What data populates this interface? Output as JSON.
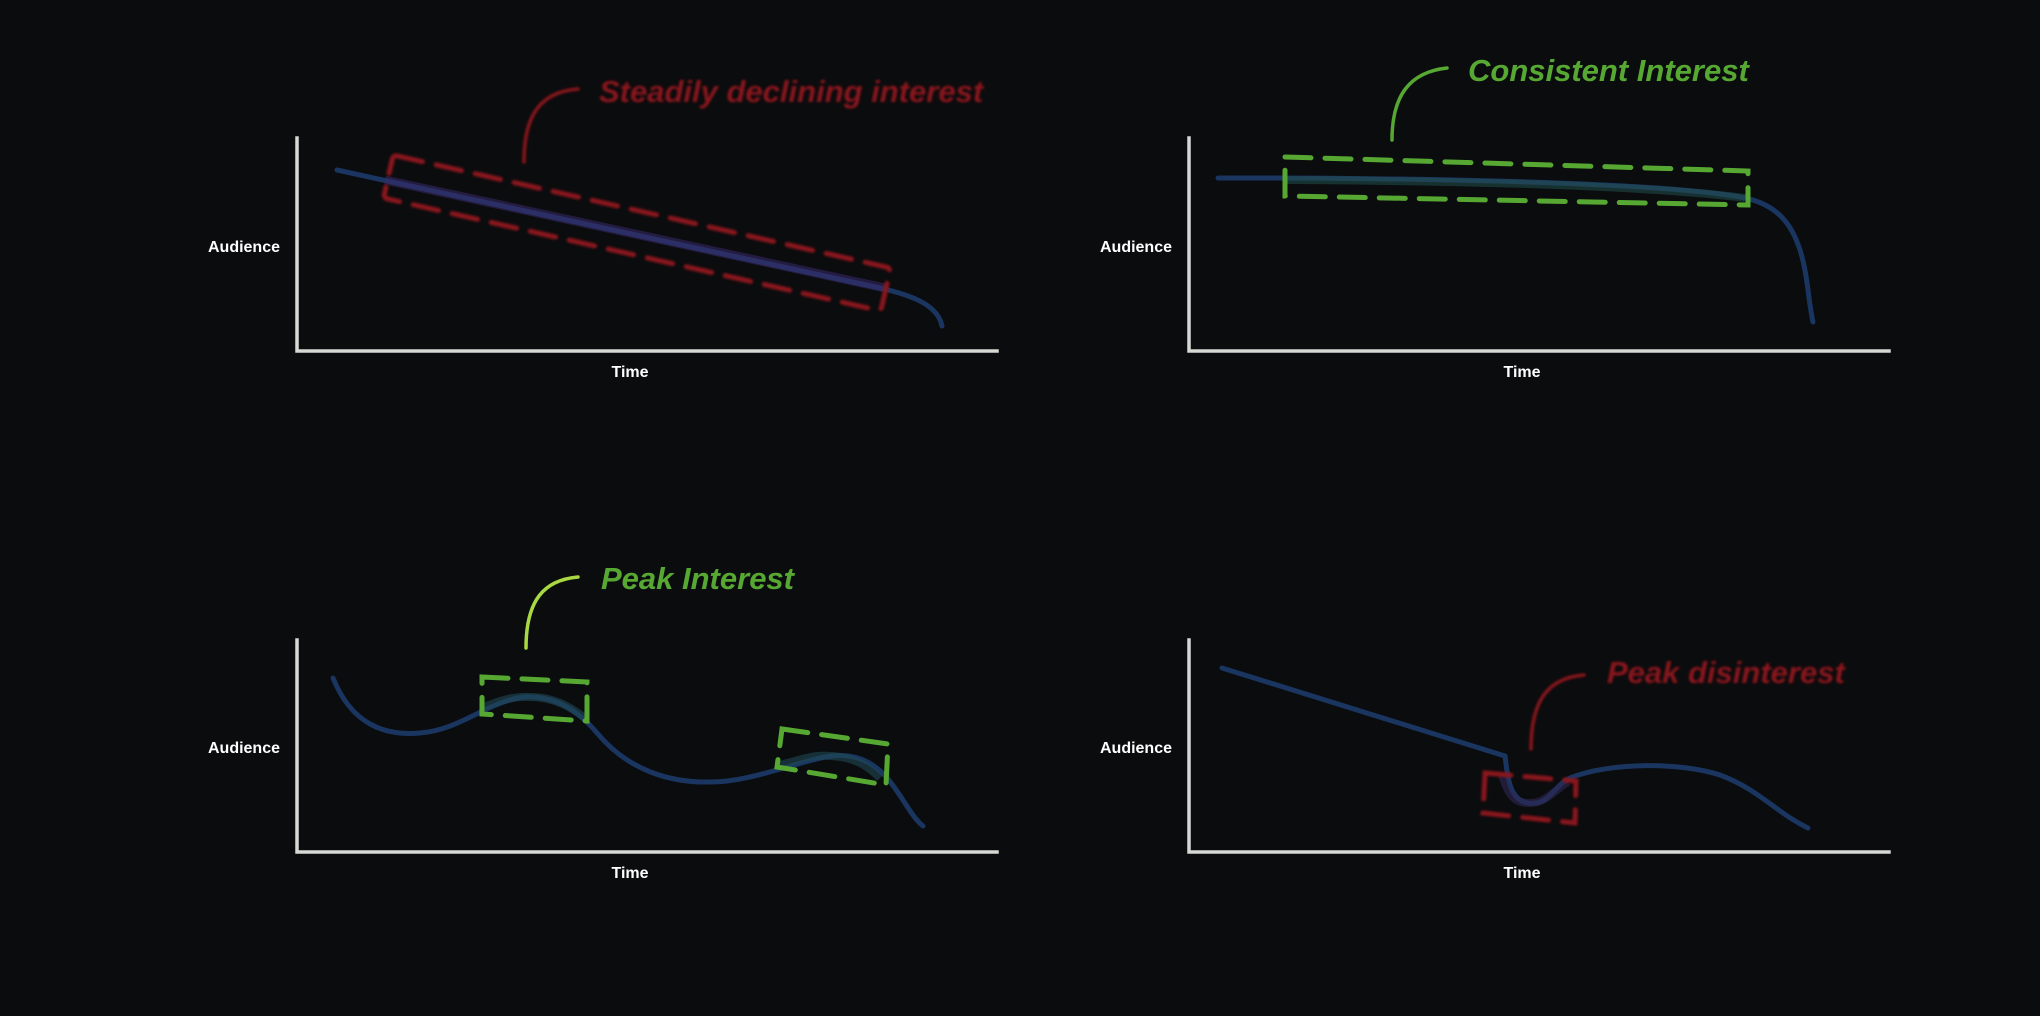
{
  "colors": {
    "background": "#0a0c0e",
    "axis": "#d8d8d4",
    "curve": "#1a3560",
    "positive": "#57a833",
    "positive_leader": "#a9d842",
    "negative": "#8a141a"
  },
  "panels": [
    {
      "id": "steady-decline",
      "y_label": "Audience",
      "x_label": "Time",
      "callout": "Steadily declining interest",
      "tone": "negative"
    },
    {
      "id": "consistent",
      "y_label": "Audience",
      "x_label": "Time",
      "callout": "Consistent Interest",
      "tone": "positive"
    },
    {
      "id": "peak-interest",
      "y_label": "Audience",
      "x_label": "Time",
      "callout": "Peak Interest",
      "tone": "positive"
    },
    {
      "id": "peak-disinterest",
      "y_label": "Audience",
      "x_label": "Time",
      "callout": "Peak disinterest",
      "tone": "negative"
    }
  ]
}
